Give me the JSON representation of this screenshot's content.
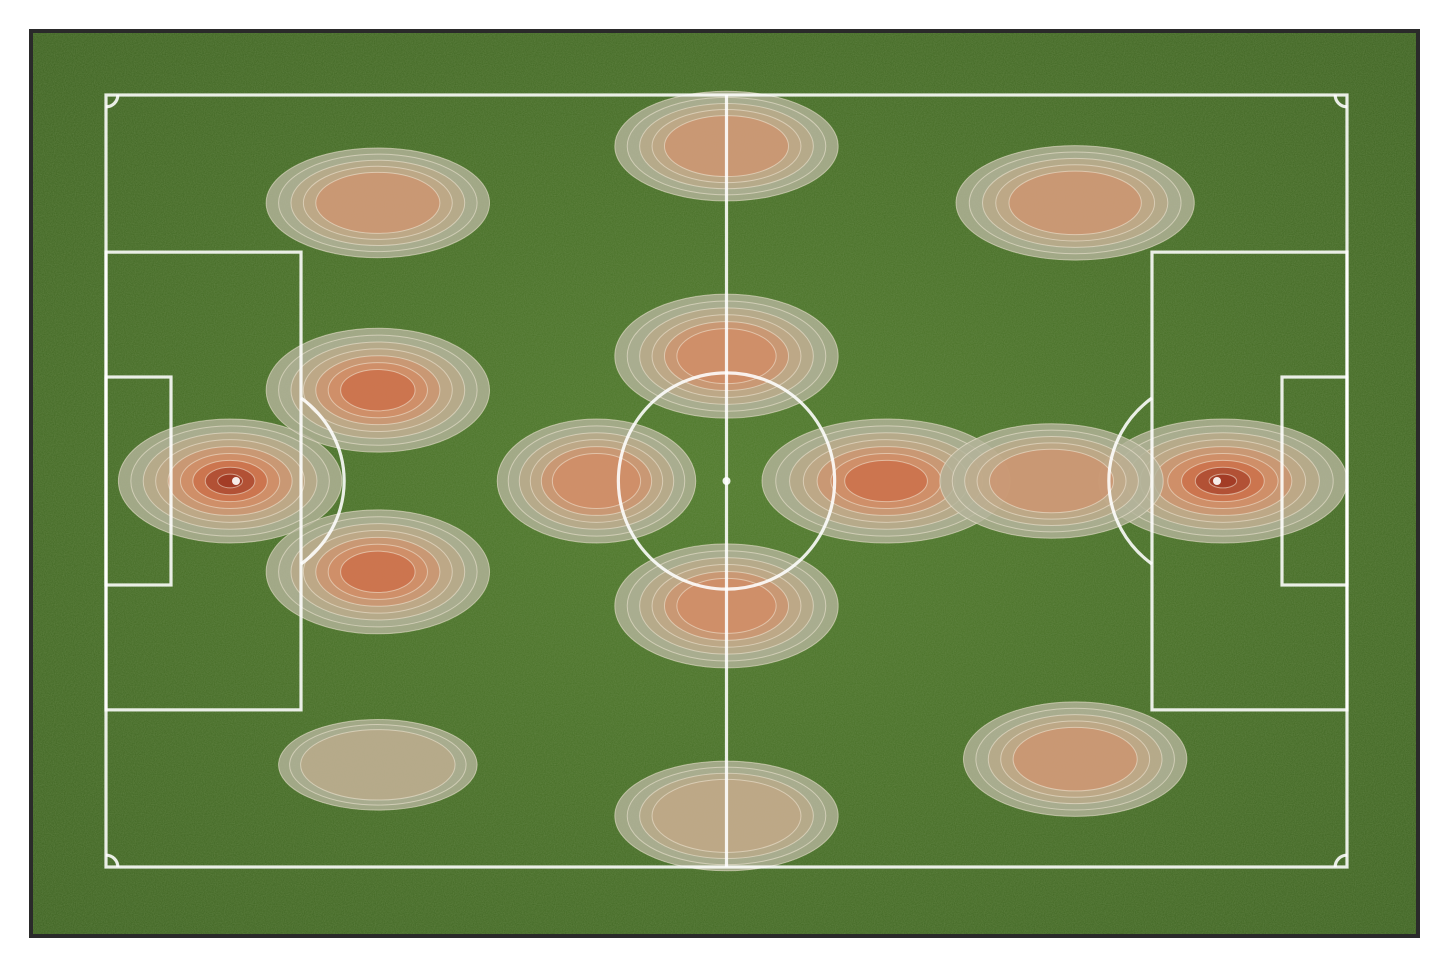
{
  "chart_data": {
    "type": "heatmap",
    "title": "",
    "xlabel": "",
    "ylabel": "",
    "pitch": {
      "length": 105,
      "width": 68,
      "xlim": [
        0,
        105
      ],
      "ylim": [
        0,
        68
      ],
      "surface": "grass",
      "line_color": "#ffffff"
    },
    "grid": false,
    "legend": false,
    "colormap": [
      "#b3b39a",
      "#c7a882",
      "#d8835a",
      "#c8512c",
      "#8e1e12"
    ],
    "hotspots": [
      {
        "x": 10.5,
        "y": 34.0,
        "intensity": 1.0,
        "sx": 4.5,
        "sy": 2.6
      },
      {
        "x": 94.5,
        "y": 34.0,
        "intensity": 1.0,
        "sx": 5.0,
        "sy": 2.6
      },
      {
        "x": 66.0,
        "y": 34.0,
        "intensity": 0.8,
        "sx": 5.0,
        "sy": 2.6
      },
      {
        "x": 80.0,
        "y": 34.0,
        "intensity": 0.55,
        "sx": 4.5,
        "sy": 2.4
      },
      {
        "x": 23.0,
        "y": 26.0,
        "intensity": 0.8,
        "sx": 4.5,
        "sy": 2.6
      },
      {
        "x": 23.0,
        "y": 42.0,
        "intensity": 0.8,
        "sx": 4.5,
        "sy": 2.6
      },
      {
        "x": 41.5,
        "y": 34.0,
        "intensity": 0.7,
        "sx": 4.0,
        "sy": 2.6
      },
      {
        "x": 52.5,
        "y": 23.0,
        "intensity": 0.7,
        "sx": 4.5,
        "sy": 2.6
      },
      {
        "x": 52.5,
        "y": 45.0,
        "intensity": 0.7,
        "sx": 4.5,
        "sy": 2.6
      },
      {
        "x": 52.5,
        "y": 4.5,
        "intensity": 0.55,
        "sx": 4.5,
        "sy": 2.3
      },
      {
        "x": 52.5,
        "y": 63.5,
        "intensity": 0.45,
        "sx": 4.5,
        "sy": 2.3
      },
      {
        "x": 23.0,
        "y": 9.5,
        "intensity": 0.5,
        "sx": 4.5,
        "sy": 2.3
      },
      {
        "x": 23.0,
        "y": 59.0,
        "intensity": 0.35,
        "sx": 4.0,
        "sy": 1.9
      },
      {
        "x": 82.0,
        "y": 9.5,
        "intensity": 0.55,
        "sx": 4.8,
        "sy": 2.4
      },
      {
        "x": 82.0,
        "y": 58.5,
        "intensity": 0.55,
        "sx": 4.5,
        "sy": 2.4
      }
    ]
  }
}
